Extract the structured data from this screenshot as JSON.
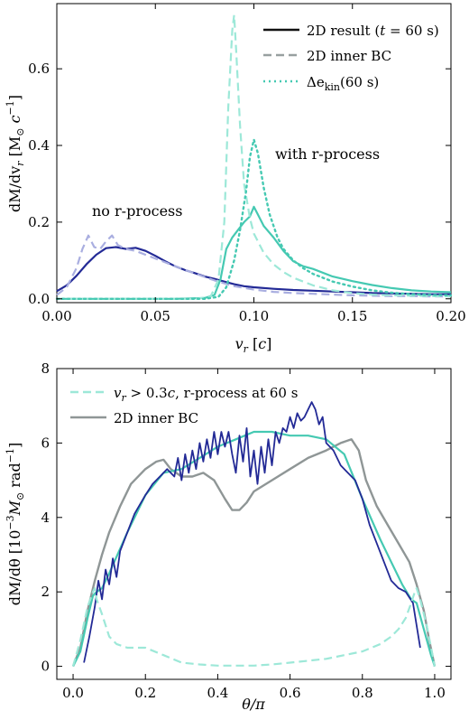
{
  "colors": {
    "dark_blue": "#232a96",
    "light_blue": "#a9aee0",
    "teal": "#45c9b2",
    "light_teal": "#9de8d8",
    "gray": "#8f9696",
    "gray_dash": "#98a0a0"
  },
  "chart_data": [
    {
      "type": "line",
      "xlabel": "v_r [c]",
      "ylabel": "dM/dv_r [M_⊙ c^−1]",
      "xlim": [
        0,
        0.2
      ],
      "ylim": [
        -0.01,
        0.77
      ],
      "xticks": [
        0,
        0.05,
        0.1,
        0.15,
        0.2
      ],
      "xtick_labels": [
        "0.00",
        "0.05",
        "0.10",
        "0.15",
        "0.20"
      ],
      "yticks": [
        0,
        0.2,
        0.4,
        0.6
      ],
      "ytick_labels": [
        "0.0",
        "0.2",
        "0.4",
        "0.6"
      ],
      "grid": false,
      "legend_position": "top-right",
      "legend": [
        {
          "label_main": "2D result (",
          "label_t": "t",
          "label_rest": " = 60 s)",
          "style": "solid",
          "color": "#111111"
        },
        {
          "label_main": "2D inner BC",
          "style": "dashed",
          "color": "#98a0a0"
        },
        {
          "label_main": "Δe",
          "label_sub": "kin",
          "label_rest": "(60 s)",
          "style": "dotted",
          "color": "#45c9b2"
        }
      ],
      "annotations": [
        {
          "text": "no r-process",
          "x": 0.018,
          "y": 0.21
        },
        {
          "text": "with r-process",
          "x": 0.108,
          "y": 0.355
        }
      ],
      "series": [
        {
          "group": "no r-process",
          "kind": "2D result",
          "color": "#232a96",
          "style": "solid",
          "width": 2.2,
          "x": [
            0.0,
            0.005,
            0.01,
            0.015,
            0.02,
            0.025,
            0.03,
            0.035,
            0.04,
            0.045,
            0.05,
            0.055,
            0.06,
            0.065,
            0.07,
            0.075,
            0.08,
            0.085,
            0.09,
            0.095,
            0.1,
            0.11,
            0.12,
            0.13,
            0.14,
            0.15,
            0.16,
            0.17,
            0.18,
            0.19,
            0.2
          ],
          "y": [
            0.02,
            0.035,
            0.06,
            0.09,
            0.115,
            0.132,
            0.135,
            0.13,
            0.133,
            0.125,
            0.112,
            0.098,
            0.085,
            0.075,
            0.067,
            0.058,
            0.052,
            0.045,
            0.038,
            0.033,
            0.03,
            0.026,
            0.023,
            0.021,
            0.019,
            0.017,
            0.015,
            0.014,
            0.013,
            0.012,
            0.012
          ]
        },
        {
          "group": "no r-process",
          "kind": "2D inner BC",
          "color": "#a9aee0",
          "style": "dashed",
          "width": 2.2,
          "x": [
            0.0,
            0.005,
            0.01,
            0.013,
            0.016,
            0.019,
            0.022,
            0.025,
            0.028,
            0.031,
            0.035,
            0.04,
            0.045,
            0.05,
            0.055,
            0.06,
            0.07,
            0.08,
            0.09,
            0.1,
            0.11,
            0.12,
            0.13,
            0.14,
            0.15,
            0.16,
            0.17,
            0.18,
            0.19,
            0.2
          ],
          "y": [
            0.01,
            0.03,
            0.08,
            0.13,
            0.165,
            0.135,
            0.13,
            0.15,
            0.165,
            0.14,
            0.13,
            0.125,
            0.115,
            0.105,
            0.095,
            0.085,
            0.066,
            0.048,
            0.033,
            0.024,
            0.018,
            0.015,
            0.013,
            0.011,
            0.009,
            0.008,
            0.007,
            0.007,
            0.006,
            0.006
          ]
        },
        {
          "group": "with r-process",
          "kind": "2D result",
          "color": "#45c9b2",
          "style": "solid",
          "width": 2.2,
          "x": [
            0.0,
            0.06,
            0.075,
            0.08,
            0.083,
            0.086,
            0.089,
            0.092,
            0.095,
            0.098,
            0.1,
            0.102,
            0.105,
            0.11,
            0.115,
            0.12,
            0.125,
            0.13,
            0.14,
            0.15,
            0.16,
            0.17,
            0.18,
            0.19,
            0.2
          ],
          "y": [
            0.0,
            0.0,
            0.002,
            0.01,
            0.05,
            0.13,
            0.16,
            0.18,
            0.2,
            0.215,
            0.24,
            0.22,
            0.19,
            0.16,
            0.125,
            0.098,
            0.085,
            0.078,
            0.058,
            0.046,
            0.036,
            0.028,
            0.022,
            0.019,
            0.017
          ]
        },
        {
          "group": "with r-process",
          "kind": "2D inner BC",
          "color": "#9de8d8",
          "style": "dashed",
          "width": 2.2,
          "x": [
            0.0,
            0.07,
            0.078,
            0.082,
            0.085,
            0.087,
            0.089,
            0.09,
            0.091,
            0.093,
            0.095,
            0.098,
            0.1,
            0.105,
            0.11,
            0.115,
            0.12,
            0.13,
            0.14,
            0.15,
            0.16,
            0.17,
            0.18,
            0.19,
            0.2
          ],
          "y": [
            0.0,
            0.0,
            0.005,
            0.05,
            0.2,
            0.5,
            0.7,
            0.74,
            0.65,
            0.45,
            0.3,
            0.21,
            0.17,
            0.12,
            0.09,
            0.07,
            0.055,
            0.035,
            0.022,
            0.015,
            0.011,
            0.009,
            0.008,
            0.007,
            0.006
          ]
        },
        {
          "group": "with r-process",
          "kind": "Δe_kin(60 s)",
          "color": "#45c9b2",
          "style": "dotted",
          "width": 2.4,
          "x": [
            0.0,
            0.075,
            0.082,
            0.086,
            0.09,
            0.093,
            0.096,
            0.098,
            0.1,
            0.102,
            0.105,
            0.108,
            0.112,
            0.115,
            0.12,
            0.125,
            0.13,
            0.14,
            0.15,
            0.16,
            0.17,
            0.18,
            0.19,
            0.2
          ],
          "y": [
            0.0,
            0.0,
            0.005,
            0.03,
            0.1,
            0.18,
            0.28,
            0.37,
            0.415,
            0.38,
            0.29,
            0.22,
            0.16,
            0.13,
            0.1,
            0.08,
            0.065,
            0.045,
            0.032,
            0.022,
            0.016,
            0.012,
            0.01,
            0.009
          ]
        }
      ]
    },
    {
      "type": "line",
      "xlabel": "θ/π",
      "ylabel": "dM/dθ [10^−3 M_⊙ rad^−1]",
      "xlim": [
        -0.045,
        1.045
      ],
      "ylim": [
        -0.35,
        8.0
      ],
      "xticks": [
        0,
        0.2,
        0.4,
        0.6,
        0.8,
        1.0
      ],
      "xtick_labels": [
        "0.0",
        "0.2",
        "0.4",
        "0.6",
        "0.8",
        "1.0"
      ],
      "yticks": [
        0,
        2,
        4,
        6,
        8
      ],
      "ytick_labels": [
        "0",
        "2",
        "4",
        "6",
        "8"
      ],
      "grid": false,
      "legend_position": "top-left",
      "legend": [
        {
          "label_v": "v",
          "label_sub": "r",
          "label_rest": " > 0.3",
          "label_c": "c",
          "label_tail": ", r-process at 60 s",
          "style": "dashed",
          "color": "#9de8d8"
        },
        {
          "label_main": "2D inner BC",
          "style": "solid",
          "color": "#8f9696"
        }
      ],
      "series": [
        {
          "kind": "2D inner BC",
          "color": "#8f9696",
          "style": "solid",
          "width": 2.4,
          "x": [
            0.0,
            0.02,
            0.04,
            0.06,
            0.08,
            0.1,
            0.13,
            0.16,
            0.2,
            0.23,
            0.25,
            0.27,
            0.3,
            0.33,
            0.36,
            0.39,
            0.42,
            0.44,
            0.46,
            0.48,
            0.5,
            0.55,
            0.6,
            0.65,
            0.7,
            0.74,
            0.77,
            0.79,
            0.81,
            0.84,
            0.87,
            0.9,
            0.93,
            0.95,
            0.97,
            0.985,
            1.0
          ],
          "y": [
            0.0,
            0.5,
            1.5,
            2.3,
            3.0,
            3.6,
            4.3,
            4.9,
            5.3,
            5.5,
            5.55,
            5.3,
            5.1,
            5.1,
            5.2,
            5.0,
            4.5,
            4.2,
            4.2,
            4.4,
            4.7,
            5.0,
            5.3,
            5.6,
            5.8,
            6.0,
            6.1,
            5.8,
            5.0,
            4.3,
            3.8,
            3.3,
            2.8,
            2.2,
            1.5,
            0.7,
            0.0
          ]
        },
        {
          "kind": "2D result (r-process)",
          "color": "#45c9b2",
          "style": "solid",
          "width": 2.2,
          "x": [
            0.0,
            0.02,
            0.04,
            0.055,
            0.065,
            0.08,
            0.1,
            0.15,
            0.2,
            0.25,
            0.3,
            0.35,
            0.4,
            0.45,
            0.5,
            0.55,
            0.6,
            0.65,
            0.7,
            0.75,
            0.8,
            0.85,
            0.88,
            0.91,
            0.935,
            0.95,
            0.97,
            0.99,
            1.0
          ],
          "y": [
            0.0,
            0.4,
            1.3,
            1.9,
            2.0,
            2.1,
            2.5,
            3.6,
            4.6,
            5.2,
            5.3,
            5.6,
            5.9,
            6.1,
            6.3,
            6.3,
            6.2,
            6.2,
            6.1,
            5.7,
            4.5,
            3.4,
            2.8,
            2.2,
            1.8,
            1.7,
            1.0,
            0.3,
            0.0
          ]
        },
        {
          "kind": "2D result (no r-process)",
          "color": "#232a96",
          "style": "solid",
          "width": 1.8,
          "x": [
            0.03,
            0.045,
            0.06,
            0.07,
            0.08,
            0.09,
            0.1,
            0.11,
            0.12,
            0.13,
            0.15,
            0.17,
            0.2,
            0.22,
            0.24,
            0.26,
            0.28,
            0.29,
            0.3,
            0.31,
            0.32,
            0.33,
            0.34,
            0.35,
            0.36,
            0.37,
            0.38,
            0.39,
            0.4,
            0.41,
            0.42,
            0.43,
            0.44,
            0.45,
            0.46,
            0.47,
            0.48,
            0.49,
            0.5,
            0.51,
            0.52,
            0.53,
            0.54,
            0.55,
            0.56,
            0.57,
            0.58,
            0.59,
            0.6,
            0.61,
            0.62,
            0.63,
            0.64,
            0.65,
            0.66,
            0.67,
            0.68,
            0.69,
            0.7,
            0.72,
            0.74,
            0.76,
            0.78,
            0.8,
            0.82,
            0.84,
            0.86,
            0.88,
            0.9,
            0.92,
            0.94,
            0.96
          ],
          "y": [
            0.1,
            0.8,
            1.6,
            2.3,
            1.8,
            2.6,
            2.2,
            2.9,
            2.4,
            3.1,
            3.6,
            4.1,
            4.6,
            4.9,
            5.1,
            5.3,
            5.1,
            5.6,
            5.0,
            5.7,
            5.2,
            5.8,
            5.3,
            6.0,
            5.5,
            6.1,
            5.6,
            6.3,
            5.7,
            6.3,
            5.9,
            6.3,
            5.7,
            5.2,
            6.2,
            5.5,
            6.4,
            5.1,
            5.8,
            4.9,
            5.9,
            5.2,
            6.1,
            5.4,
            6.3,
            6.0,
            6.4,
            6.3,
            6.7,
            6.4,
            6.8,
            6.6,
            6.7,
            6.9,
            7.1,
            6.9,
            6.5,
            6.7,
            6.0,
            5.8,
            5.4,
            5.2,
            5.0,
            4.5,
            3.8,
            3.3,
            2.8,
            2.3,
            2.1,
            2.0,
            1.7,
            0.5
          ]
        },
        {
          "kind": "v_r > 0.3c, r-process at 60 s",
          "color": "#9de8d8",
          "style": "dashed",
          "width": 2.2,
          "x": [
            0.0,
            0.02,
            0.04,
            0.055,
            0.06,
            0.065,
            0.08,
            0.1,
            0.12,
            0.15,
            0.2,
            0.25,
            0.3,
            0.35,
            0.4,
            0.45,
            0.5,
            0.55,
            0.6,
            0.65,
            0.7,
            0.75,
            0.8,
            0.85,
            0.88,
            0.9,
            0.92,
            0.935,
            0.945,
            0.95,
            0.96,
            0.98,
            1.0
          ],
          "y": [
            0.0,
            0.7,
            1.6,
            2.0,
            2.1,
            1.8,
            1.4,
            0.8,
            0.6,
            0.5,
            0.5,
            0.3,
            0.1,
            0.05,
            0.02,
            0.02,
            0.02,
            0.05,
            0.1,
            0.15,
            0.2,
            0.3,
            0.4,
            0.6,
            0.8,
            1.0,
            1.3,
            1.7,
            2.0,
            2.1,
            1.8,
            1.0,
            0.0
          ]
        }
      ]
    }
  ],
  "panel1": {
    "y_label_main": "dM/dv",
    "y_label_sub": "r",
    "y_label_unit_open": " [M",
    "y_label_unit_sym": "⊙",
    "y_label_unit_c": " c",
    "y_label_unit_exp": "−1",
    "y_label_unit_close": "]",
    "x_label_v": "v",
    "x_label_sub": "r",
    "x_label_unit_open": " [",
    "x_label_unit_c": "c",
    "x_label_unit_close": "]"
  },
  "panel2": {
    "y_label_main": "dM/dθ [10",
    "y_label_exp": "−3",
    "y_label_m": "M",
    "y_label_sym": "⊙",
    "y_label_rad": " rad",
    "y_label_exp2": "−1",
    "y_label_close": "]",
    "x_label": "θ/π"
  }
}
